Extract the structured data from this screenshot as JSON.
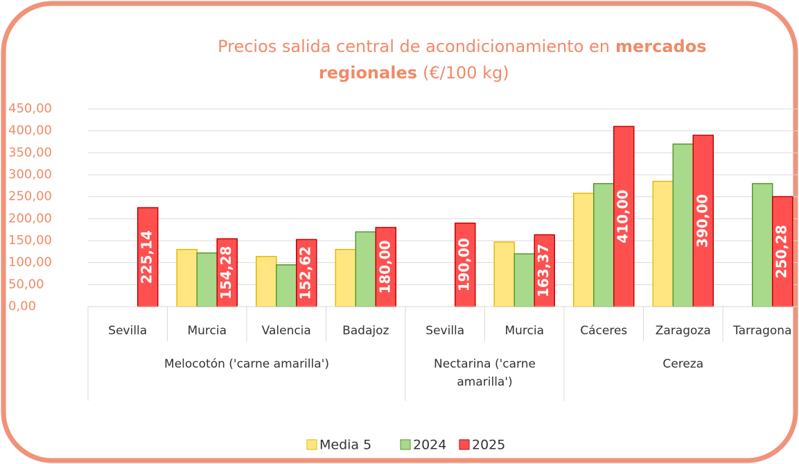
{
  "chart_data": {
    "type": "bar",
    "title": [
      "Precios salida central de acondicionamiento en",
      "mercados",
      "regionales",
      "(€/100 kg)"
    ],
    "groups": [
      {
        "name": "Melocotón ('carne amarilla')",
        "categories": [
          "Sevilla",
          "Murcia",
          "Valencia",
          "Badajoz"
        ]
      },
      {
        "name": "Nectarina ('carne amarilla')",
        "categories": [
          "Sevilla",
          "Murcia"
        ]
      },
      {
        "name": "Cereza",
        "categories": [
          "Cáceres",
          "Zaragoza",
          "Tarragona"
        ]
      }
    ],
    "series": [
      {
        "name": "Media 5",
        "color": "#ffe680",
        "border": "#e6b800",
        "values": [
          null,
          130,
          114,
          130,
          null,
          147,
          258,
          285,
          0
        ]
      },
      {
        "name": "2024",
        "color": "#a9d98b",
        "border": "#4f9a2a",
        "values": [
          null,
          122,
          95,
          170,
          null,
          120,
          280,
          370,
          280
        ]
      },
      {
        "name": "2025",
        "color": "#ff5050",
        "border": "#c00000",
        "values": [
          225.14,
          154.28,
          152.62,
          180,
          190,
          163.37,
          410,
          390,
          250.28
        ],
        "value_labels": [
          "225,14",
          "154,28",
          "152,62",
          "180,00",
          "190,00",
          "163,37",
          "410,00",
          "390,00",
          "250,28"
        ]
      }
    ],
    "ylim": [
      0,
      450
    ],
    "yticks": [
      {
        "value": 0,
        "label": "0,00"
      },
      {
        "value": 50,
        "label": "50,00"
      },
      {
        "value": 100,
        "label": "100,00"
      },
      {
        "value": 150,
        "label": "150,00"
      },
      {
        "value": 200,
        "label": "200,00"
      },
      {
        "value": 250,
        "label": "250,00"
      },
      {
        "value": 300,
        "label": "300,00"
      },
      {
        "value": 350,
        "label": "350,00"
      },
      {
        "value": 400,
        "label": "400,00"
      },
      {
        "value": 450,
        "label": "450,00"
      }
    ],
    "grid": true,
    "legend": "bottom"
  }
}
